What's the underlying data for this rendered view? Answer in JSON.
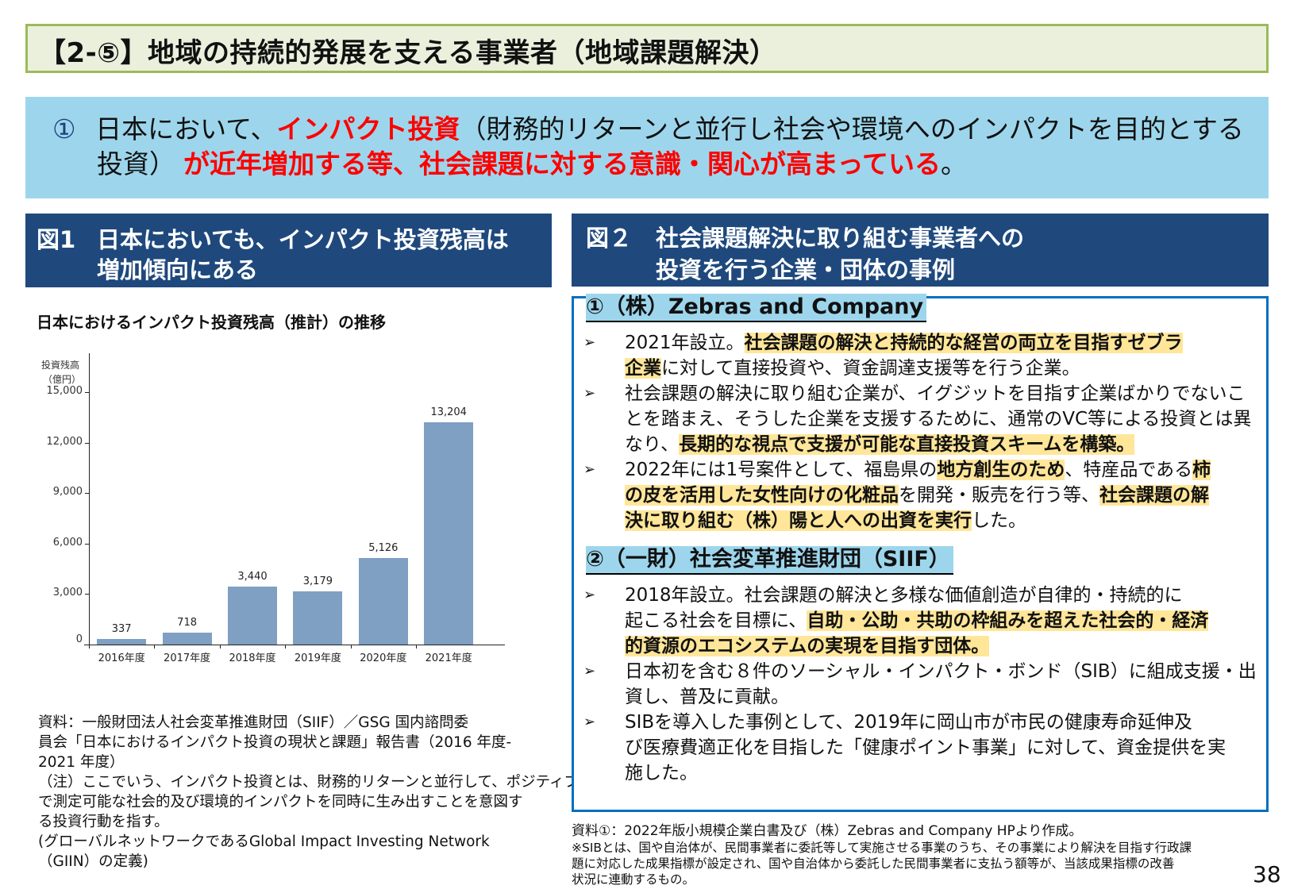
{
  "title": "【2-⑤】地域の持続的発展を支える事業者（地域課題解決）",
  "summary": {
    "number": "①",
    "line1_a": "日本において、",
    "line1_red": "インパクト投資",
    "line1_b": "（財務的リターンと並行し社会や環境へのインパクトを目的とする",
    "line2_a": "投資）",
    "line2_red": "が近年増加する等、社会課題に対する意識・関心が高まっている",
    "line2_end": "。"
  },
  "fig1": {
    "label": "図1",
    "title_line1": "日本においても、インパクト投資残高は",
    "title_line2": "増加傾向にある",
    "chart_title": "日本におけるインパクト投資残高（推計）の推移",
    "source_lines": [
      "資料：一般財団法人社会変革推進財団（SIIF）／GSG 国内諮問委",
      "員会「日本におけるインパクト投資の現状と課題」報告書（2016 年度-",
      "2021 年度）",
      "（注）ここでいう、インパクト投資とは、財務的リターンと並行して、ポジティブ",
      "で測定可能な社会的及び環境的インパクトを同時に生み出すことを意図す",
      "る投資行動を指す。",
      "(グローバルネットワークであるGlobal Impact Investing Network",
      "（GIIN）の定義)"
    ]
  },
  "chart_data": {
    "type": "bar",
    "title": "日本におけるインパクト投資残高（推計）の推移",
    "ylabel": "投資残高（億円）",
    "ylabel_line1": "投資残高",
    "ylabel_line2": "（億円）",
    "xlabel": "",
    "categories": [
      "2016年度",
      "2017年度",
      "2018年度",
      "2019年度",
      "2020年度",
      "2021年度"
    ],
    "values": [
      337,
      718,
      3440,
      3179,
      5126,
      13204
    ],
    "value_labels": [
      "337",
      "718",
      "3,440",
      "3,179",
      "5,126",
      "13,204"
    ],
    "yticks": [
      "0",
      "3,000",
      "6,000",
      "9,000",
      "12,000",
      "15,000"
    ],
    "ylim": [
      0,
      15000
    ],
    "bar_color": "#7f9fc3",
    "grid": false,
    "legend": "none"
  },
  "fig2": {
    "label": "図２",
    "title_line1": "社会課題解決に取り組む事業者への",
    "title_line2": "投資を行う企業・団体の事例",
    "cases": [
      {
        "heading": "①（株）Zebras and Company",
        "bullets": [
          {
            "lines": [
              [
                {
                  "t": "2021年設立。"
                },
                {
                  "t": "社会課題の解決と持続的な経営の両立を目指すゼブラ",
                  "hl": true
                }
              ],
              [
                {
                  "t": "企業",
                  "hl": true
                },
                {
                  "t": "に対して直接投資や、資金調達支援等を行う企業。"
                }
              ]
            ]
          },
          {
            "lines": [
              [
                {
                  "t": "社会課題の解決に取り組む企業が、イグジットを目指す企業ばかりでないこ"
                }
              ],
              [
                {
                  "t": "とを踏まえ、そうした企業を支援するために、通常のVC等による投資とは異"
                }
              ],
              [
                {
                  "t": "なり、"
                },
                {
                  "t": "長期的な視点で支援が可能な直接投資スキームを構築。",
                  "hl": true
                }
              ]
            ]
          },
          {
            "lines": [
              [
                {
                  "t": "2022年には1号案件として、福島県の"
                },
                {
                  "t": "地方創生のため",
                  "hl": true
                },
                {
                  "t": "、特産品である"
                },
                {
                  "t": "柿",
                  "hl": true
                }
              ],
              [
                {
                  "t": "の皮を活用した女性向けの化粧品",
                  "hl": true
                },
                {
                  "t": "を開発・販売を行う等、"
                },
                {
                  "t": "社会課題の解",
                  "hl": true
                }
              ],
              [
                {
                  "t": "決に取り組む（株）陽と人への出資を実行",
                  "hl": true
                },
                {
                  "t": "した。"
                }
              ]
            ]
          }
        ]
      },
      {
        "heading": "②（一財）社会変革推進財団（SIIF）",
        "bullets": [
          {
            "lines": [
              [
                {
                  "t": "2018年設立。社会課題の解決と多様な価値創造が自律的・持続的に"
                }
              ],
              [
                {
                  "t": "起こる社会を目標に、"
                },
                {
                  "t": "自助・公助・共助の枠組みを超えた社会的・経済",
                  "hl": true
                }
              ],
              [
                {
                  "t": "的資源のエコシステムの実現を目指す団体。",
                  "hl": true
                }
              ]
            ]
          },
          {
            "lines": [
              [
                {
                  "t": "日本初を含む８件のソーシャル・インパクト・ボンド（SIB）に組成支援・出"
                }
              ],
              [
                {
                  "t": "資し、普及に貢献。"
                }
              ]
            ]
          },
          {
            "lines": [
              [
                {
                  "t": "SIBを導入した事例として、2019年に岡山市が市民の健康寿命延伸及"
                }
              ],
              [
                {
                  "t": "び医療費適正化を目指した「健康ポイント事業」に対して、資金提供を実"
                }
              ],
              [
                {
                  "t": "施した。"
                }
              ]
            ]
          }
        ]
      }
    ],
    "bullet_marker": "➢",
    "source_line": "資料①：2022年版小規模企業白書及び（株）Zebras and Company HPより作成。",
    "note_lines": [
      "※SIBとは、国や自治体が、民間事業者に委託等して実施させる事業のうち、その事業により解決を目指す行政課",
      "題に対応した成果指標が設定され、国や自治体から委託した民間事業者に支払う額等が、当該成果指標の改善",
      "状況に連動するもの。"
    ]
  },
  "page_number": "38",
  "colors": {
    "title_border": "#9bbb59",
    "title_bg": "#ebf0dd",
    "summary_bg": "#9dd6ec",
    "emphasis_red": "#ff0000",
    "header_navy": "#1f497d",
    "case_border": "#0070c0",
    "highlight": "#ffe699",
    "bar": "#7f9fc3"
  }
}
